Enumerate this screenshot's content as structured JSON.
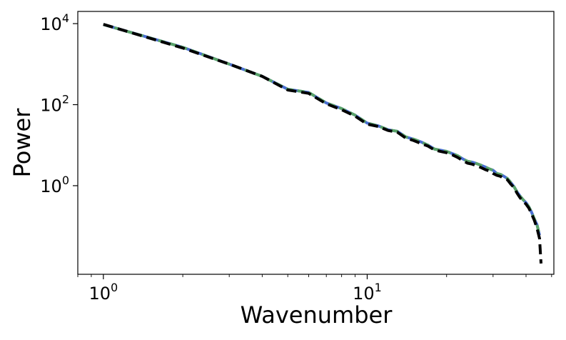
{
  "chart_data": {
    "type": "line",
    "title": "",
    "xlabel": "Wavenumber",
    "ylabel": "Power",
    "xscale": "log",
    "yscale": "log",
    "xlim": [
      0.8,
      51
    ],
    "ylim": [
      0.0065,
      20000
    ],
    "grid": false,
    "legend": "none",
    "x_ticks": [
      {
        "value": 1,
        "base": "10",
        "exp": "0"
      },
      {
        "value": 10,
        "base": "10",
        "exp": "1"
      }
    ],
    "y_ticks": [
      {
        "value": 1,
        "base": "10",
        "exp": "0"
      },
      {
        "value": 100,
        "base": "10",
        "exp": "2"
      },
      {
        "value": 10000,
        "base": "10",
        "exp": "4"
      }
    ],
    "series": [
      {
        "color": "#4a6fd1",
        "style": "solid",
        "x": [
          1,
          2,
          3,
          4,
          5,
          6,
          7,
          8,
          9,
          10,
          11,
          12,
          13,
          14,
          15,
          16,
          17,
          18,
          19,
          20,
          21,
          22,
          23,
          24,
          25,
          26,
          27,
          28,
          29,
          30,
          31,
          32,
          33,
          34,
          35,
          36,
          37,
          38,
          39,
          40,
          41,
          42,
          43,
          44,
          45
        ],
        "y": [
          9500,
          2600,
          1000,
          500,
          240,
          200,
          110,
          80,
          55,
          35,
          30,
          24,
          22,
          16,
          14,
          12,
          10,
          8,
          7.5,
          7,
          6.2,
          5.5,
          4.6,
          4.0,
          3.8,
          3.5,
          3.2,
          2.9,
          2.6,
          2.4,
          2.0,
          1.9,
          1.7,
          1.5,
          1.2,
          0.95,
          0.7,
          0.55,
          0.45,
          0.38,
          0.3,
          0.22,
          0.15,
          0.11,
          0.06
        ]
      },
      {
        "color": "#5aa36a",
        "style": "dashed",
        "x": [
          1,
          2,
          3,
          4,
          5,
          6,
          7,
          8,
          9,
          10,
          11,
          12,
          13,
          14,
          15,
          16,
          17,
          18,
          19,
          20,
          21,
          22,
          23,
          24,
          25,
          26,
          27,
          28,
          29,
          30,
          31,
          32,
          33,
          34,
          35,
          36,
          37,
          38,
          39,
          40,
          41,
          42,
          43,
          44,
          45
        ],
        "y": [
          9500,
          2600,
          1000,
          500,
          240,
          200,
          110,
          80,
          55,
          35,
          30,
          24,
          22,
          16,
          14,
          12,
          10,
          8,
          7.5,
          7,
          6.2,
          5.5,
          4.6,
          4.0,
          3.8,
          3.5,
          3.2,
          2.9,
          2.6,
          2.4,
          2.0,
          1.9,
          1.7,
          1.5,
          1.2,
          0.95,
          0.7,
          0.55,
          0.45,
          0.38,
          0.3,
          0.22,
          0.15,
          0.11,
          0.06
        ]
      },
      {
        "color": "#000000",
        "style": "dashed",
        "x": [
          1,
          2,
          3,
          4,
          5,
          6,
          7,
          8,
          9,
          10,
          11,
          12,
          13,
          14,
          15,
          16,
          17,
          18,
          19,
          20,
          21,
          22,
          23,
          24,
          25,
          26,
          27,
          28,
          29,
          30,
          31,
          32,
          33,
          34,
          35,
          36,
          37,
          38,
          39,
          40,
          41,
          42,
          43,
          44,
          45,
          45.6
        ],
        "y": [
          9600,
          2500,
          1000,
          500,
          230,
          190,
          105,
          75,
          52,
          33,
          29,
          23,
          21,
          15,
          13,
          11,
          9.5,
          7.6,
          7,
          6.5,
          5.8,
          5.0,
          4.2,
          3.6,
          3.4,
          3.1,
          2.8,
          2.5,
          2.3,
          2.0,
          1.8,
          1.7,
          1.5,
          1.4,
          1.1,
          0.9,
          0.65,
          0.5,
          0.42,
          0.35,
          0.28,
          0.2,
          0.14,
          0.09,
          0.05,
          0.012
        ]
      }
    ]
  }
}
